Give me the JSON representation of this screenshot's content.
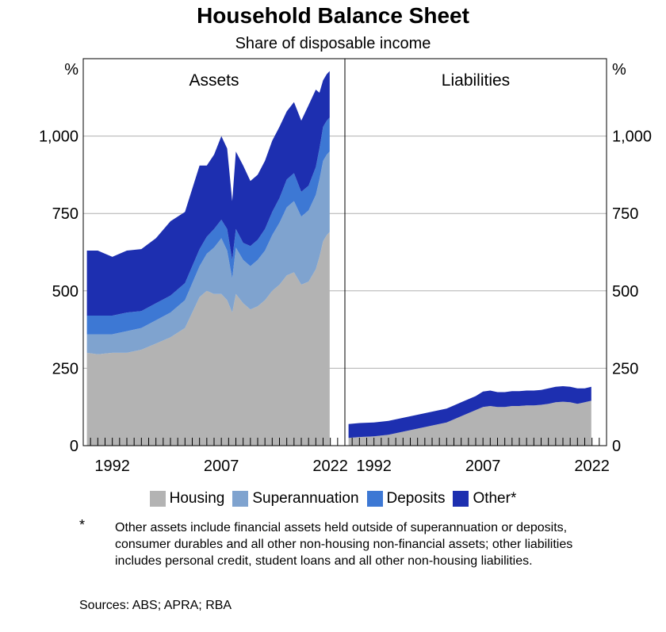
{
  "title": "Household Balance Sheet",
  "subtitle": "Share of disposable income",
  "footnote": {
    "mark": "*",
    "text": "Other assets include financial assets held outside of superannuation or deposits, consumer durables and all other non-housing non-financial assets; other liabilities includes personal credit, student loans and all other non-housing liabilities."
  },
  "sources": "Sources: ABS; APRA; RBA",
  "chart_data": {
    "type": "area",
    "stacked": true,
    "unit_label": "%",
    "y_ticks": [
      "0",
      "250",
      "500",
      "750",
      "1,000"
    ],
    "y_tick_values": [
      0,
      250,
      500,
      750,
      1000
    ],
    "ylim": [
      0,
      1250
    ],
    "x_ticks": [
      "1992",
      "2007",
      "2022"
    ],
    "x_tick_values": [
      1992,
      2007,
      2022
    ],
    "xlim": [
      1988,
      2024
    ],
    "grid": true,
    "legend": [
      {
        "name": "Housing",
        "color": "#b3b3b3"
      },
      {
        "name": "Superannuation",
        "color": "#7fa3cf"
      },
      {
        "name": "Deposits",
        "color": "#3d78d4"
      },
      {
        "name": "Other*",
        "color": "#1d2fb0"
      }
    ],
    "legend_placement": "bottom",
    "panels": [
      {
        "title": "Assets",
        "x": [
          1988.5,
          1990,
          1992,
          1994,
          1996,
          1998,
          2000,
          2002,
          2004,
          2005,
          2006,
          2007,
          2007.8,
          2008.5,
          2009,
          2010,
          2011,
          2012,
          2013,
          2014,
          2015,
          2016,
          2017,
          2018,
          2019,
          2020,
          2020.5,
          2021,
          2021.5,
          2021.9
        ],
        "series": [
          {
            "name": "Housing",
            "values": [
              300,
              295,
              300,
              300,
              310,
              330,
              350,
              380,
              480,
              500,
              490,
              490,
              470,
              430,
              490,
              460,
              440,
              450,
              470,
              500,
              520,
              550,
              560,
              520,
              530,
              570,
              610,
              660,
              680,
              690
            ]
          },
          {
            "name": "Superannuation",
            "values": [
              60,
              65,
              60,
              70,
              70,
              75,
              80,
              90,
              100,
              120,
              150,
              180,
              160,
              110,
              150,
              140,
              140,
              150,
              160,
              180,
              200,
              220,
              230,
              220,
              230,
              240,
              250,
              260,
              260,
              260
            ]
          },
          {
            "name": "Deposits",
            "values": [
              60,
              60,
              60,
              60,
              55,
              55,
              55,
              55,
              55,
              55,
              60,
              60,
              70,
              60,
              60,
              55,
              65,
              65,
              70,
              75,
              80,
              90,
              90,
              80,
              80,
              90,
              100,
              110,
              110,
              110
            ]
          },
          {
            "name": "Other*",
            "values": [
              210,
              210,
              190,
              200,
              200,
              210,
              240,
              230,
              270,
              230,
              240,
              270,
              260,
              190,
              250,
              250,
              210,
              210,
              220,
              230,
              230,
              220,
              230,
              230,
              260,
              250,
              180,
              150,
              150,
              150
            ]
          }
        ]
      },
      {
        "title": "Liabilities",
        "x": [
          1988.5,
          1990,
          1992,
          1994,
          1996,
          1998,
          2000,
          2002,
          2004,
          2005,
          2006,
          2007,
          2008,
          2009,
          2010,
          2011,
          2012,
          2013,
          2014,
          2015,
          2016,
          2017,
          2018,
          2019,
          2020,
          2021,
          2021.9
        ],
        "series": [
          {
            "name": "Housing",
            "values": [
              25,
              28,
              30,
              35,
              45,
              55,
              65,
              75,
              95,
              105,
              115,
              125,
              128,
              125,
              125,
              128,
              128,
              130,
              130,
              132,
              135,
              140,
              142,
              140,
              135,
              140,
              145
            ]
          },
          {
            "name": "Other*",
            "values": [
              45,
              45,
              45,
              45,
              45,
              45,
              45,
              45,
              45,
              45,
              45,
              50,
              50,
              48,
              48,
              48,
              48,
              48,
              48,
              48,
              50,
              50,
              50,
              50,
              50,
              45,
              45
            ]
          }
        ]
      }
    ]
  }
}
